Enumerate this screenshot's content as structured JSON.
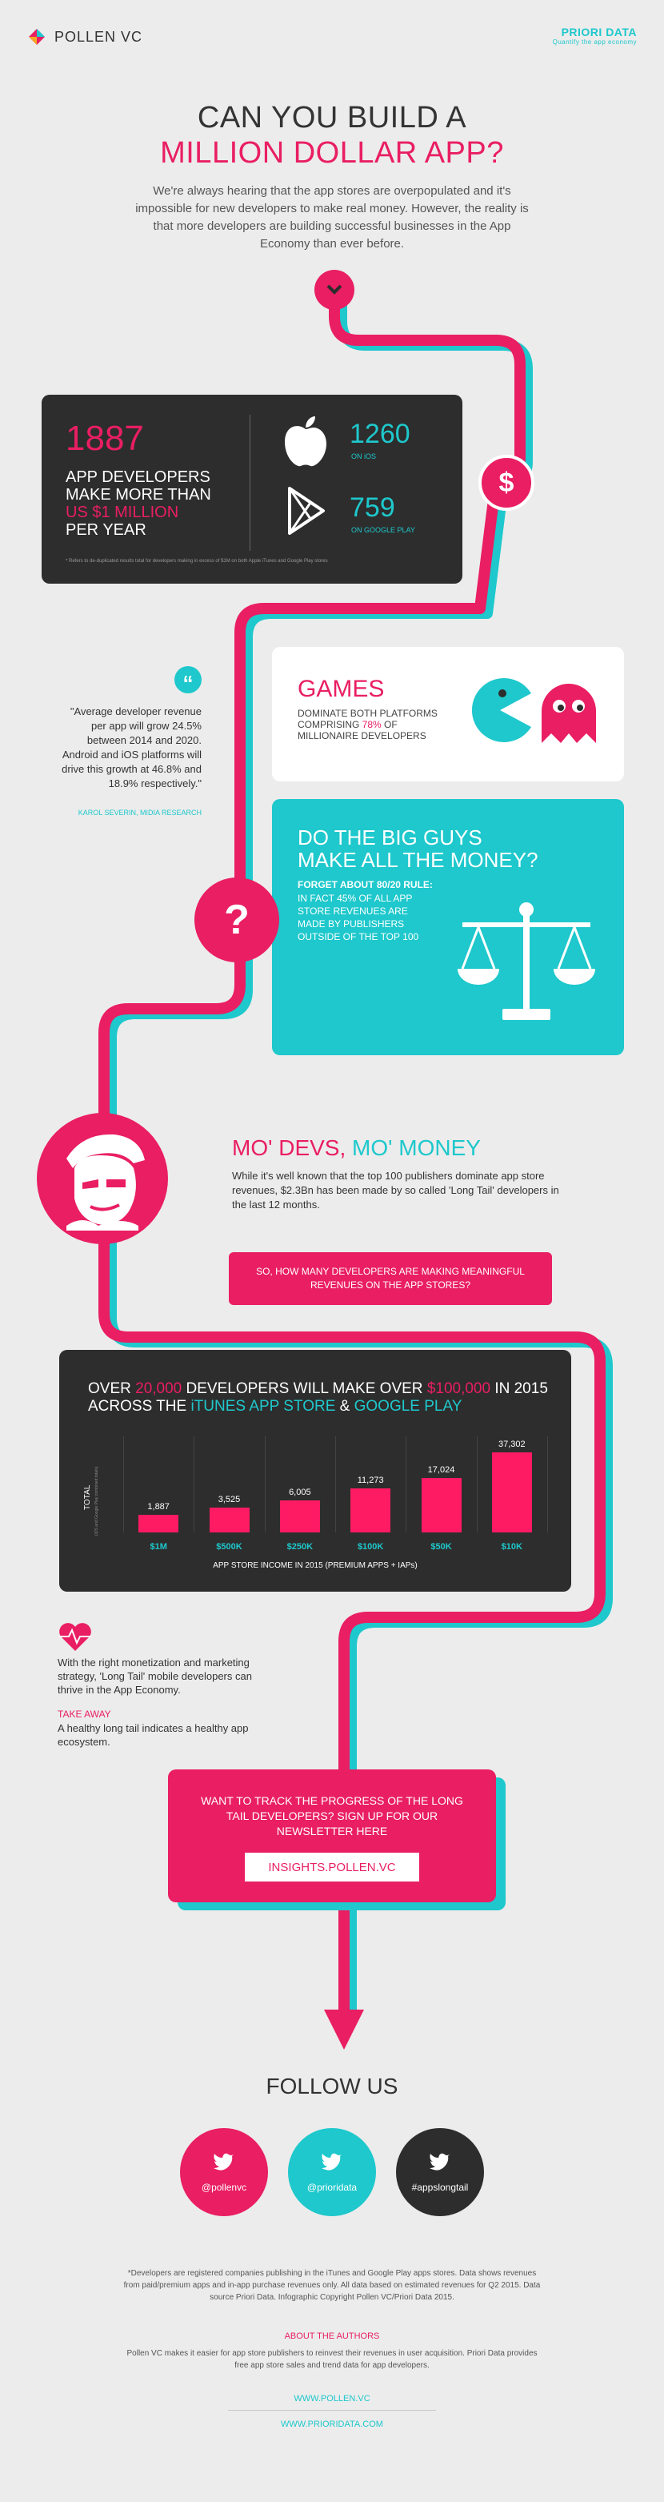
{
  "header": {
    "brand": "POLLEN VC",
    "partner": "PRIORI DATA",
    "partner_tagline": "Quantify the app economy"
  },
  "hero": {
    "title_line1": "CAN YOU BUILD A",
    "title_line2": "MILLION DOLLAR APP?",
    "intro": "We're always hearing that the app stores are overpopulated and it's impossible for new developers to make real money. However, the reality is that more developers are building successful businesses in the App Economy than ever before."
  },
  "stats": {
    "total": "1887",
    "line1": "APP DEVELOPERS",
    "line2": "MAKE MORE THAN",
    "line3": "US $1 MILLION",
    "line4": "PER YEAR",
    "ios_value": "1260",
    "ios_label": "ON iOS",
    "gp_value": "759",
    "gp_label": "ON GOOGLE PLAY",
    "footnote": "* Refers to de-duplicated results total for developers making in excess of $1M on both Apple iTunes and Google Play stores"
  },
  "quote": {
    "text": "\"Average developer revenue per app will grow 24.5% between 2014 and 2020. Android and iOS platforms will drive this growth at 46.8% and 18.9% respectively.\"",
    "author": "KAROL SEVERIN, MIDIA RESEARCH"
  },
  "games": {
    "title": "GAMES",
    "line1": "DOMINATE BOTH PLATFORMS",
    "line2a": "COMPRISING ",
    "line2b": "78%",
    "line2c": " OF",
    "line3": "MILLIONAIRE DEVELOPERS"
  },
  "bigguys": {
    "title1": "DO THE BIG GUYS",
    "title2": "MAKE ALL THE MONEY?",
    "sub": "FORGET ABOUT 80/20 RULE:",
    "body": "IN FACT 45% OF ALL APP STORE REVENUES ARE MADE BY PUBLISHERS OUTSIDE OF THE TOP 100"
  },
  "modevs": {
    "title1": "MO' DEVS, ",
    "title2": "MO' MONEY",
    "body": "While it's well known that the top 100 publishers dominate app store revenues, $2.3Bn has been made by so called 'Long Tail' developers in the last 12 months."
  },
  "question_banner": "SO, HOW MANY DEVELOPERS ARE MAKING MEANINGFUL REVENUES ON THE APP STORES?",
  "chart_panel": {
    "heading_a": "OVER ",
    "heading_b": "20,000",
    "heading_c": " DEVELOPERS WILL MAKE OVER ",
    "heading_d": "$100,000",
    "heading_e": " IN 2015",
    "heading_f": "ACROSS THE ",
    "heading_g": "iTUNES APP STORE",
    "heading_h": " & ",
    "heading_i": "GOOGLE PLAY",
    "ylabel_main": "TOTAL",
    "ylabel_sub": "(iOS and Google Play combined totals)"
  },
  "chart_data": {
    "type": "bar",
    "categories": [
      "$1M",
      "$500K",
      "$250K",
      "$100K",
      "$50K",
      "$10K"
    ],
    "values": [
      1887,
      3525,
      6005,
      11273,
      17024,
      37302
    ],
    "value_labels": [
      "1,887",
      "3,525",
      "6,005",
      "11,273",
      "17,024",
      "37,302"
    ],
    "xlabel": "APP STORE INCOME IN 2015 (PREMIUM APPS + IAPs)",
    "ylabel": "TOTAL",
    "bar_color": "#ff1a64"
  },
  "takeaway": {
    "body": "With the right monetization and marketing strategy, 'Long Tail' mobile developers can thrive in the App Economy.",
    "label": "TAKE AWAY",
    "text": "A healthy long tail indicates a healthy app ecosystem."
  },
  "newsletter": {
    "text": "WANT TO TRACK THE PROGRESS OF THE LONG TAIL DEVELOPERS? SIGN UP FOR OUR NEWSLETTER HERE",
    "button": "INSIGHTS.POLLEN.VC"
  },
  "follow": {
    "title": "FOLLOW US",
    "handles": [
      "@pollenvc",
      "@prioridata",
      "#appslongtail"
    ]
  },
  "footer": {
    "disclaimer": "*Developers are registered companies publishing in the iTunes and Google Play apps stores. Data shows revenues from paid/premium apps and in-app purchase revenues only. All data based on estimated revenues for Q2 2015. Data source Priori Data. Infographic Copyright Pollen VC/Priori Data 2015.",
    "about_title": "ABOUT THE AUTHORS",
    "about": "Pollen VC makes it easier for app store publishers to reinvest their revenues in user acquisition. Priori Data provides free app store sales and trend data for app developers.",
    "link1": "WWW.POLLEN.VC",
    "link2": "WWW.PRIORIDATA.COM"
  },
  "colors": {
    "pink": "#e91e63",
    "teal": "#1ec8cc",
    "dark": "#2d2d2d"
  }
}
